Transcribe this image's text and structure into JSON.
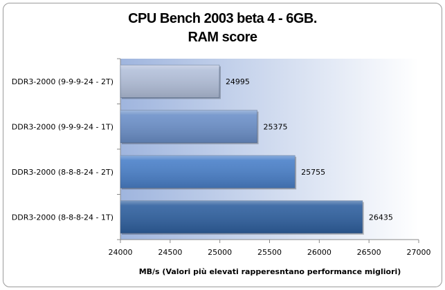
{
  "chart_data": {
    "type": "bar",
    "orientation": "horizontal",
    "title_line1": "CPU Bench 2003 beta 4 - 6GB.",
    "title_line2": "RAM score",
    "categories": [
      "DDR3-2000 (9-9-9-24 - 2T)",
      "DDR3-2000 (9-9-9-24 - 1T)",
      "DDR3-2000 (8-8-8-24 - 2T)",
      "DDR3-2000 (8-8-8-24 - 1T)"
    ],
    "values": [
      24995,
      25375,
      25755,
      26435
    ],
    "bar_colors": [
      "#b3c0da",
      "#6c90c9",
      "#4a80c9",
      "#2f609f"
    ],
    "xlabel": "MB/s (Valori più  elevati rapperesntano performance migliori)",
    "xlim": [
      24000,
      27000
    ],
    "xticks": [
      24000,
      24500,
      25000,
      25500,
      26000,
      26500,
      27000
    ],
    "grid": false,
    "legend": "none"
  }
}
